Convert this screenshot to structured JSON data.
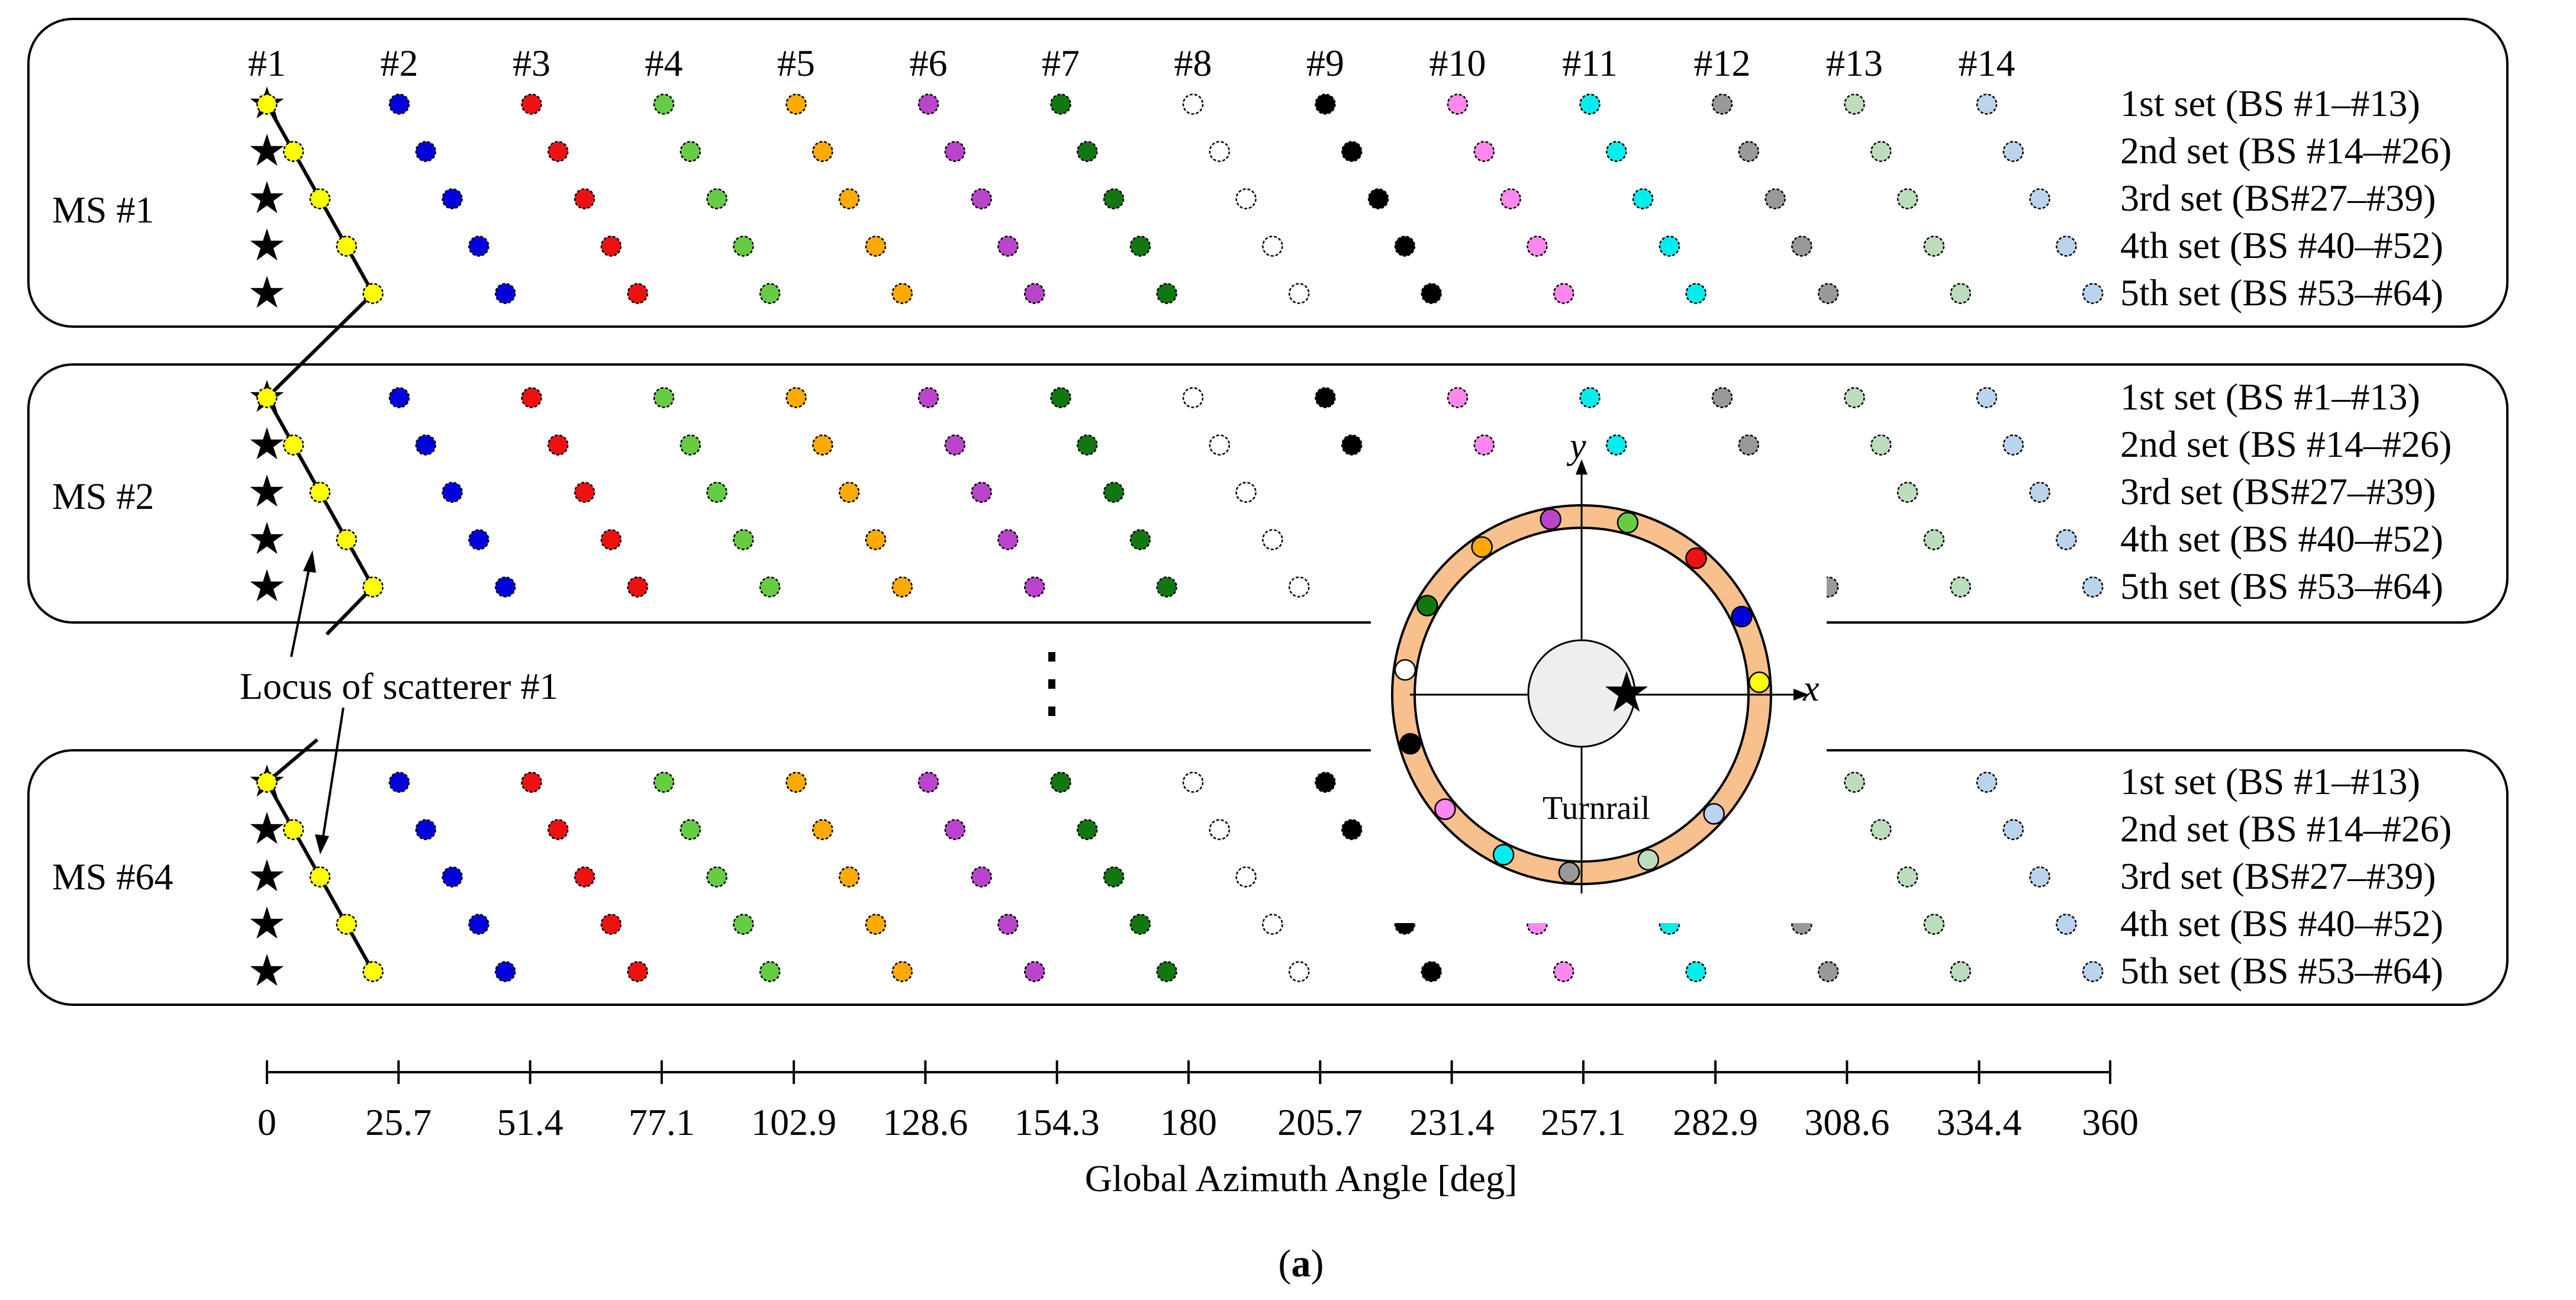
{
  "column_headers": [
    "#1",
    "#2",
    "#3",
    "#4",
    "#5",
    "#6",
    "#7",
    "#8",
    "#9",
    "#10",
    "#11",
    "#12",
    "#13",
    "#14"
  ],
  "bs_colors": [
    "#ffff00",
    "#0000dd",
    "#ee1111",
    "#66cc44",
    "#ffaa00",
    "#bb44cc",
    "#117711",
    "#ffffff",
    "#000000",
    "#ff88ee",
    "#00eeee",
    "#999999",
    "#bbddbb",
    "#bbd4ee"
  ],
  "panels": [
    {
      "label": "MS #1"
    },
    {
      "label": "MS #2"
    },
    {
      "label": "MS #64"
    }
  ],
  "set_labels": [
    "1st set (BS #1–#13)",
    "2nd set (BS #14–#26)",
    "3rd set (BS#27–#39)",
    "4th set (BS #40–#52)",
    "5th set (BS #53–#64)"
  ],
  "ellipsis": "⋮",
  "locus_label": "Locus of scatterer #1",
  "inset": {
    "x_label": "x",
    "y_label": "y",
    "turnrail_label": "Turnrail",
    "ring_color": "#f8c08c"
  },
  "axis": {
    "title": "Global Azimuth Angle [deg]",
    "min": 0,
    "max": 360,
    "ticks": [
      0,
      25.7,
      51.4,
      77.1,
      102.9,
      128.6,
      154.3,
      180,
      205.7,
      231.4,
      257.1,
      282.9,
      308.6,
      334.4,
      360
    ],
    "tick_labels": [
      "0",
      "25.7",
      "51.4",
      "77.1",
      "102.9",
      "128.6",
      "154.3",
      "180",
      "205.7",
      "231.4",
      "257.1",
      "282.9",
      "308.6",
      "334.4",
      "360"
    ]
  },
  "caption": "(a)"
}
